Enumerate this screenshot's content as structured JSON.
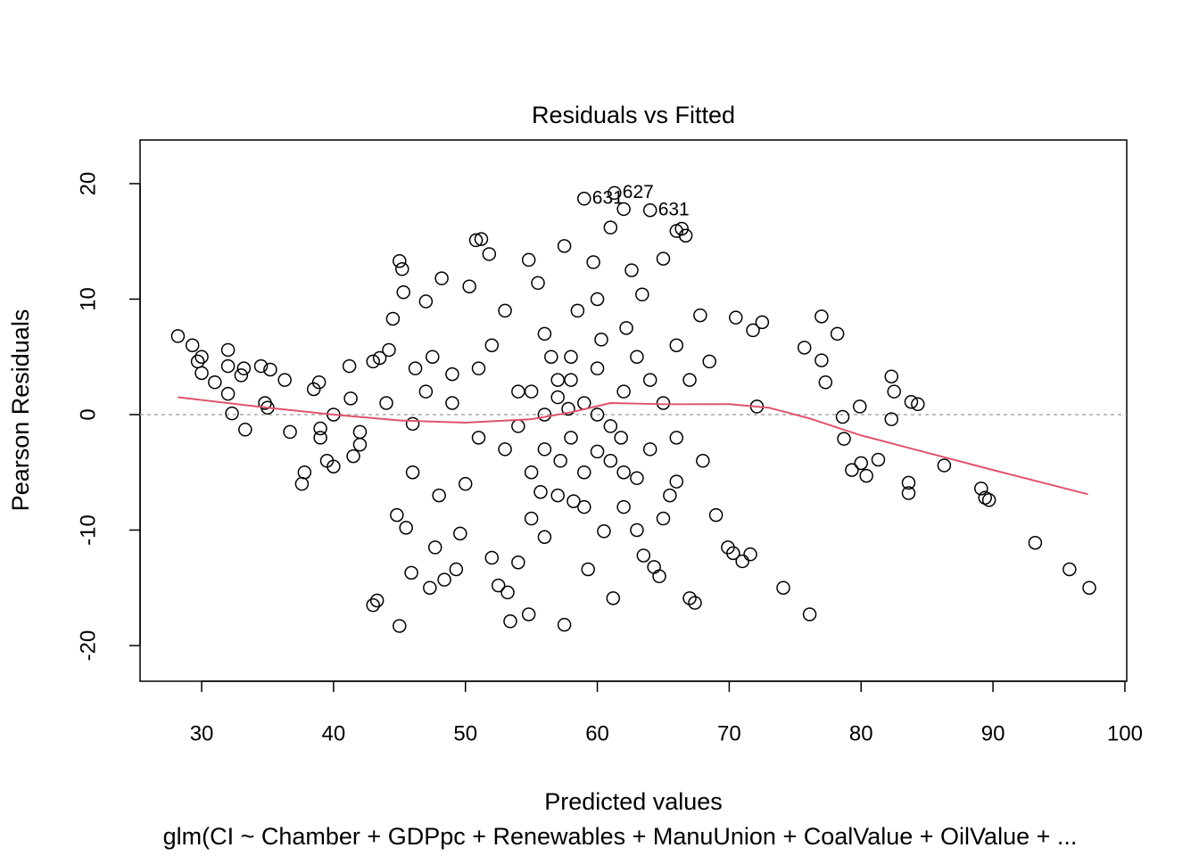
{
  "chart_data": {
    "type": "scatter",
    "title": "Residuals vs Fitted",
    "xlabel": "Predicted values",
    "ylabel": "Pearson Residuals",
    "subtitle": "glm(CI ~ Chamber + GDPpc + Renewables + ManuUnion + CoalValue + OilValue +  ...",
    "xlim": [
      25.33,
      100.14
    ],
    "ylim": [
      -23.09,
      23.78
    ],
    "xticks": [
      30,
      40,
      50,
      60,
      70,
      80,
      90,
      100
    ],
    "yticks": [
      -20,
      -10,
      0,
      10,
      20
    ],
    "hline": 0,
    "point_color": "#000000",
    "x": [
      28.2,
      29.3,
      29.7,
      30,
      30,
      31,
      32,
      32,
      32,
      32.3,
      33,
      33.2,
      33.3,
      34.5,
      34.8,
      35.2,
      35,
      36.3,
      36.7,
      37.6,
      37.8,
      38.5,
      38.9,
      39,
      39.5,
      40,
      41.2,
      41.3,
      41.5,
      42,
      43,
      43.3,
      43,
      43.5,
      44.2,
      44.5,
      45,
      45.2,
      45.3,
      44.8,
      45.5,
      45.9,
      45,
      46,
      46.2,
      47,
      47.5,
      47.7,
      47.3,
      48.2,
      48.4,
      49,
      49.3,
      49.6,
      50.3,
      50.8,
      51.2,
      51.8,
      51,
      52,
      52.5,
      53.2,
      53.4,
      54,
      54.8,
      54.8,
      55.5,
      55,
      55.7,
      56,
      56.5,
      57,
      57.2,
      57.5,
      57.5,
      57.8,
      58,
      58.2,
      58.5,
      59,
      59.3,
      59.7,
      60,
      60.3,
      60.5,
      61,
      61.2,
      61.3,
      61.8,
      62,
      62.2,
      62.6,
      63,
      63.4,
      63.5,
      64,
      64.3,
      64.7,
      65,
      65.5,
      66,
      66.4,
      66.7,
      66,
      67,
      67.4,
      67.8,
      68.5,
      69,
      69.9,
      70.3,
      70.5,
      71,
      71.6,
      71.8,
      72.5,
      72.1,
      74.1,
      75.7,
      76.1,
      77,
      77,
      77.3,
      78.2,
      78.6,
      78.7,
      79.3,
      80,
      79.9,
      80.4,
      81.3,
      82.3,
      82.5,
      82.3,
      83.6,
      83.6,
      83.8,
      84.3,
      86.3,
      89.1,
      89.4,
      89.7,
      93.2,
      95.8,
      97.3,
      53,
      54,
      55,
      56,
      56,
      57,
      58,
      59,
      59,
      60,
      61,
      62,
      62,
      63,
      64,
      65,
      52,
      51,
      50,
      49,
      48,
      53,
      55,
      60,
      63,
      66,
      67,
      54,
      58,
      61,
      57,
      56,
      59,
      60,
      62,
      64,
      65,
      66,
      68,
      47,
      46,
      44,
      42,
      40,
      39
    ],
    "y": [
      6.8,
      6.0,
      4.6,
      5.0,
      3.6,
      2.8,
      5.6,
      4.2,
      1.8,
      0.1,
      3.4,
      4.0,
      -1.3,
      4.2,
      1.0,
      3.9,
      0.6,
      3.0,
      -1.5,
      -6.0,
      -5.0,
      2.2,
      2.8,
      -1.2,
      -4.0,
      -4.5,
      4.2,
      1.4,
      -3.6,
      -2.6,
      -16.5,
      -16.1,
      4.6,
      4.9,
      5.6,
      8.3,
      13.3,
      12.6,
      10.6,
      -8.7,
      -9.8,
      -13.7,
      -18.3,
      -0.8,
      4.0,
      9.8,
      5.0,
      -11.5,
      -15.0,
      11.8,
      -14.3,
      3.5,
      -13.4,
      -10.3,
      11.1,
      15.1,
      15.2,
      13.9,
      4.0,
      -12.4,
      -14.8,
      -15.4,
      -17.9,
      -12.8,
      -17.3,
      13.4,
      11.4,
      2.0,
      -6.7,
      -10.6,
      5.0,
      1.5,
      -4.0,
      -18.2,
      14.6,
      0.5,
      3.0,
      -7.5,
      9.0,
      18.7,
      -13.4,
      13.2,
      -3.2,
      6.5,
      -10.1,
      16.2,
      -15.9,
      19.2,
      -2.0,
      17.8,
      7.5,
      12.5,
      -5.5,
      10.4,
      -12.2,
      17.7,
      -13.2,
      -14.0,
      13.5,
      -7.0,
      15.9,
      16.1,
      15.5,
      -5.8,
      -15.9,
      -16.3,
      8.6,
      4.6,
      -8.7,
      -11.5,
      -12.0,
      8.4,
      -12.7,
      -12.1,
      7.3,
      8.0,
      0.7,
      -15.0,
      5.8,
      -17.3,
      8.5,
      4.7,
      2.8,
      7.0,
      -0.2,
      -2.1,
      -4.8,
      -4.2,
      0.7,
      -5.3,
      -3.9,
      3.3,
      2.0,
      -0.4,
      -5.9,
      -6.8,
      1.1,
      0.9,
      -4.4,
      -6.4,
      -7.2,
      -7.4,
      -11.1,
      -13.4,
      -15.0,
      -3,
      2,
      -5,
      0,
      7,
      -7,
      -2,
      1,
      -8,
      4,
      -4,
      2,
      -8,
      5,
      -3,
      1,
      6,
      -2,
      -6,
      1,
      -7,
      9,
      -9,
      10,
      -10,
      -2,
      3,
      -1,
      5,
      -1,
      3,
      -3,
      -5,
      0,
      -5,
      3,
      -9,
      6,
      -4,
      2,
      -5,
      1,
      -1.5,
      0,
      -2
    ],
    "annotations": [
      {
        "text": "631",
        "x": 59,
        "y": 18.7
      },
      {
        "text": "627",
        "x": 61.3,
        "y": 19.2
      },
      {
        "text": "631",
        "x": 64,
        "y": 17.7
      }
    ],
    "smooth": {
      "color": "#DF536B",
      "x": [
        28.2,
        35,
        40,
        45,
        50,
        55,
        58,
        61,
        65,
        70,
        73,
        76,
        80,
        85,
        90,
        97.2
      ],
      "y": [
        1.5,
        0.6,
        0,
        -0.5,
        -0.7,
        -0.4,
        0.2,
        1.0,
        0.9,
        0.9,
        0.6,
        -0.3,
        -1.8,
        -3.3,
        -4.8,
        -6.9
      ]
    }
  }
}
